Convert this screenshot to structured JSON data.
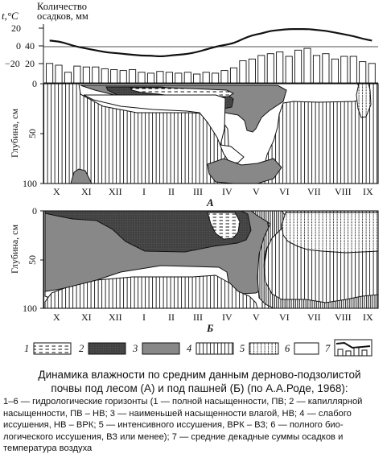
{
  "axes": {
    "temperature_label": "t,°C",
    "precipitation_label": "Количество осадков, мм",
    "depth_label": "Глубина, см",
    "temperature_ticks": [
      "20",
      "0",
      "−20"
    ],
    "precipitation_ticks": [
      "40",
      "20"
    ],
    "depth_ticks": [
      "0",
      "50",
      "100"
    ],
    "months": [
      "X",
      "XI",
      "XII",
      "I",
      "II",
      "III",
      "IV",
      "V",
      "VI",
      "VII",
      "VIII",
      "IX"
    ]
  },
  "panels": {
    "a": "А",
    "b": "Б"
  },
  "legend": [
    "1",
    "2",
    "3",
    "4",
    "5",
    "6",
    "7"
  ],
  "caption": {
    "line1": "Динамика влажности по средним данным дерново-подзолистой",
    "line2": "почвы под лесом (А) и под пашней (Б) (по А.А.Роде, 1968):"
  },
  "notes": [
    "1–6 — гидрологические горизонты (1 — полной насыщенности, ПВ; 2 — капиллярной",
    "насыщенности, ПВ – НВ; 3 — наименьшей насыщенности влагой, НВ; 4 — слабого",
    "иссушения, НВ – ВРК; 5 — интенсивного иссушения, ВРК – ВЗ; 6 — полного био-",
    "логического иссушения, ВЗ или менее); 7 — средние декадные суммы осадков и",
    "температура воздуха"
  ],
  "chart_data": {
    "type": "bar",
    "categories": [
      "X",
      "XI",
      "XII",
      "I",
      "II",
      "III",
      "IV",
      "V",
      "VI",
      "VII",
      "VIII",
      "IX"
    ],
    "precipitation_decadal": [
      22,
      20,
      12,
      19,
      18,
      18,
      16,
      15,
      14,
      15,
      12,
      11,
      13,
      12,
      11,
      12,
      10,
      12,
      11,
      14,
      17,
      25,
      27,
      31,
      33,
      35,
      30,
      37,
      39,
      31,
      33,
      27,
      30,
      30,
      24,
      22
    ],
    "temperature_decadal": [
      6,
      5,
      2,
      -1,
      -3,
      -5,
      -7,
      -8,
      -9,
      -10,
      -11,
      -11,
      -12,
      -11,
      -10,
      -9,
      -7,
      -4,
      -1,
      1,
      3,
      8,
      12,
      14,
      17,
      18,
      19,
      19,
      19,
      18,
      17,
      15,
      13,
      11,
      8,
      6
    ]
  }
}
